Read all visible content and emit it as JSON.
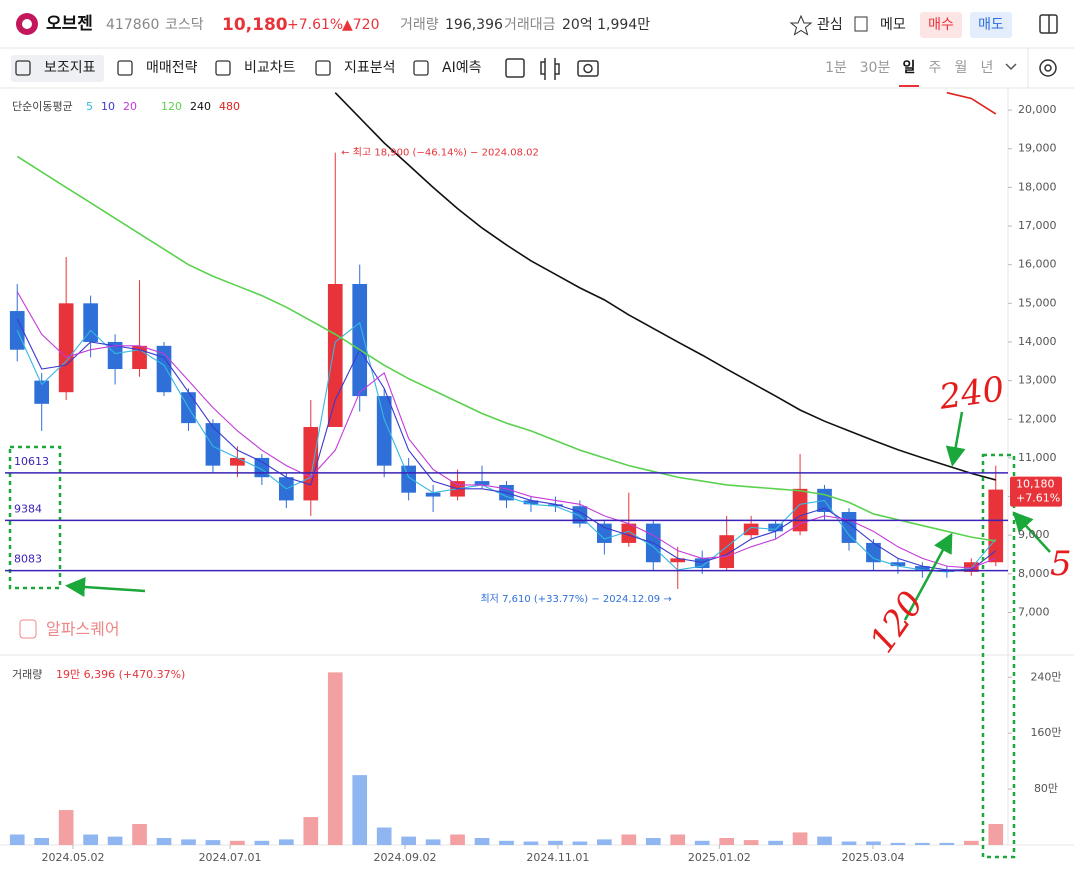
{
  "header": {
    "name": "오브젠",
    "code": "417860",
    "market": "코스닥",
    "price": "10,180",
    "change_pct": "+7.61%",
    "change": "▲720",
    "volume_label": "거래량",
    "volume": "196,396",
    "amount_label": "거래대금",
    "amount": "20억 1,994만",
    "actions": [
      "관심",
      "메모"
    ],
    "buy": "매수",
    "sell": "매도"
  },
  "toolbar": {
    "tools": [
      "보조지표",
      "매매전략",
      "비교차트",
      "지표분석",
      "AI예측"
    ],
    "periods": [
      "1분",
      "30분",
      "일",
      "주",
      "월",
      "년"
    ],
    "active_period": 2
  },
  "watermark": "알파스퀘어",
  "handwritten": [
    "240",
    "120",
    "5"
  ],
  "chart_data": [
    {
      "type": "candlestick",
      "legend_title": "단순이동평균",
      "xlim": [
        -0.5,
        40.5
      ],
      "ylim": [
        5900,
        20520
      ],
      "yticks": [
        {
          "value": 7000,
          "label": "7,000"
        },
        {
          "value": 8000,
          "label": "8,000"
        },
        {
          "value": 9000,
          "label": "9,000"
        },
        {
          "value": 10000,
          "label": "10,000"
        },
        {
          "value": 11000,
          "label": "11,000"
        },
        {
          "value": 12000,
          "label": "12,000"
        },
        {
          "value": 13000,
          "label": "13,000"
        },
        {
          "value": 14000,
          "label": "14,000"
        },
        {
          "value": 15000,
          "label": "15,000"
        },
        {
          "value": 16000,
          "label": "16,000"
        },
        {
          "value": 17000,
          "label": "17,000"
        },
        {
          "value": 18000,
          "label": "18,000"
        },
        {
          "value": 19000,
          "label": "19,000"
        },
        {
          "value": 20000,
          "label": "20,000"
        }
      ],
      "xticks": [
        {
          "value": 2.28,
          "label": "2024.05.02"
        },
        {
          "value": 8.7,
          "label": "2024.07.01"
        },
        {
          "value": 15.85,
          "label": "2024.09.02"
        },
        {
          "value": 22.1,
          "label": "2024.11.01"
        },
        {
          "value": 28.7,
          "label": "2025.01.02"
        },
        {
          "value": 34.98,
          "label": "2025.03.04"
        }
      ],
      "grid": false,
      "up_color": "#e8333a",
      "down_color": "#2f6fd8",
      "open": [
        14800,
        13000,
        12700,
        15000,
        14000,
        13300,
        13900,
        12700,
        11900,
        10800,
        11000,
        10500,
        9900,
        11800,
        15500,
        12600,
        10800,
        10100,
        10000,
        10400,
        10300,
        9900,
        9800,
        9750,
        9300,
        8800,
        9300,
        8300,
        8400,
        8150,
        9000,
        9300,
        9100,
        10200,
        9600,
        8800,
        8300,
        8200,
        8100,
        8050,
        8300
      ],
      "high": [
        15500,
        13200,
        16200,
        15200,
        14200,
        15600,
        14000,
        12800,
        12000,
        11300,
        11100,
        10600,
        12500,
        18900,
        16000,
        12800,
        11000,
        10300,
        10700,
        10800,
        10400,
        10000,
        10000,
        9900,
        9400,
        10100,
        9400,
        8700,
        8600,
        9500,
        9500,
        9400,
        11100,
        10300,
        9700,
        8900,
        8400,
        8300,
        8200,
        8400,
        10800
      ],
      "low": [
        13500,
        11700,
        12500,
        13600,
        12900,
        13100,
        12600,
        11700,
        10600,
        10500,
        10300,
        9700,
        9500,
        11800,
        12200,
        10500,
        9900,
        9600,
        9900,
        10200,
        9700,
        9600,
        9600,
        9200,
        8500,
        8700,
        8100,
        7610,
        8000,
        8100,
        8900,
        8900,
        9000,
        9400,
        8600,
        8100,
        8000,
        7900,
        7900,
        7950,
        8200
      ],
      "close": [
        13800,
        12400,
        15000,
        14000,
        13300,
        13900,
        12700,
        11900,
        10800,
        11000,
        10500,
        9900,
        11800,
        15500,
        12600,
        10800,
        10100,
        10000,
        10400,
        10300,
        9900,
        9800,
        9750,
        9300,
        8800,
        9300,
        8300,
        8400,
        8150,
        9000,
        9300,
        9100,
        10200,
        9600,
        8800,
        8300,
        8200,
        8100,
        8050,
        8300,
        10180
      ],
      "series": [
        {
          "name": "5",
          "color": "#35b8e0",
          "values": [
            14300,
            12900,
            13500,
            14300,
            13700,
            13800,
            13400,
            12300,
            11300,
            11000,
            10700,
            10200,
            10500,
            14000,
            14500,
            12000,
            10500,
            10100,
            10200,
            10300,
            10000,
            9800,
            9750,
            9500,
            8900,
            9100,
            8700,
            8100,
            8200,
            8700,
            9200,
            9150,
            9800,
            9900,
            9000,
            8400,
            8200,
            8100,
            8050,
            8150,
            8900
          ]
        },
        {
          "name": "10",
          "color": "#3a3ad0",
          "values": [
            14600,
            13300,
            13400,
            14000,
            13900,
            13800,
            13600,
            12700,
            11800,
            11200,
            10900,
            10500,
            10300,
            12500,
            13800,
            12800,
            11200,
            10400,
            10200,
            10200,
            10100,
            9900,
            9800,
            9600,
            9200,
            9000,
            8800,
            8400,
            8300,
            8500,
            8900,
            9100,
            9500,
            9700,
            9300,
            8800,
            8400,
            8200,
            8100,
            8100,
            8600
          ]
        },
        {
          "name": "20",
          "color": "#c43ad9",
          "values": [
            15300,
            14200,
            13600,
            13800,
            13900,
            13900,
            13700,
            13000,
            12300,
            11700,
            11200,
            10800,
            10500,
            11200,
            12700,
            13200,
            11500,
            10700,
            10300,
            10300,
            10200,
            10000,
            9900,
            9800,
            9500,
            9300,
            9000,
            8600,
            8400,
            8450,
            8700,
            8900,
            9300,
            9500,
            9400,
            9100,
            8700,
            8400,
            8200,
            8150,
            8400
          ]
        },
        {
          "name": "120",
          "color": "#5ad24e",
          "values": [
            18800,
            18400,
            18000,
            17600,
            17200,
            16800,
            16400,
            16000,
            15700,
            15450,
            15200,
            14900,
            14550,
            14200,
            13800,
            13400,
            13050,
            12750,
            12450,
            12150,
            11900,
            11700,
            11450,
            11200,
            11000,
            10800,
            10650,
            10500,
            10400,
            10300,
            10250,
            10200,
            10150,
            10050,
            9850,
            9550,
            9400,
            9250,
            9100,
            8950,
            8850
          ]
        },
        {
          "name": "240",
          "color": "#111111",
          "values": [
            null,
            null,
            null,
            null,
            null,
            null,
            null,
            null,
            null,
            null,
            null,
            null,
            null,
            20450,
            19800,
            19150,
            18580,
            18000,
            17450,
            16950,
            16510,
            16100,
            15750,
            15400,
            15090,
            14700,
            14350,
            14000,
            13660,
            13300,
            12950,
            12600,
            12240,
            11950,
            11700,
            11450,
            11210,
            11000,
            10800,
            10600,
            10430
          ]
        },
        {
          "name": "480",
          "color": "#e0201c",
          "values": [
            null,
            null,
            null,
            null,
            null,
            null,
            null,
            null,
            null,
            null,
            null,
            null,
            null,
            null,
            null,
            null,
            null,
            null,
            null,
            null,
            null,
            null,
            null,
            null,
            null,
            null,
            null,
            null,
            null,
            null,
            null,
            null,
            null,
            null,
            null,
            null,
            null,
            null,
            20450,
            20300,
            19900
          ]
        }
      ],
      "levels": [
        10613,
        9384,
        8083
      ],
      "level_color": "#3a22b8",
      "high_note": "← 최고 18,900 (−46.14%) − 2024.08.02",
      "low_note": "최저 7,610 (+33.77%) − 2024.12.09 →",
      "last_labels": [
        "10,180",
        "+7.61%"
      ]
    },
    {
      "type": "bar",
      "label": "거래량",
      "summary": "19만 6,396 (+470.37%)",
      "ylim": [
        0,
        2647000
      ],
      "yticks": [
        {
          "value": 800000,
          "label": "80만"
        },
        {
          "value": 1600000,
          "label": "160만"
        },
        {
          "value": 2400000,
          "label": "240만"
        }
      ],
      "up_color": "#f3a0a3",
      "down_color": "#8fb6f0",
      "values": [
        150000,
        100000,
        500000,
        150000,
        120000,
        300000,
        100000,
        80000,
        70000,
        60000,
        60000,
        80000,
        400000,
        2470000,
        1000000,
        250000,
        120000,
        80000,
        150000,
        100000,
        60000,
        50000,
        60000,
        50000,
        80000,
        150000,
        100000,
        150000,
        60000,
        100000,
        70000,
        60000,
        180000,
        120000,
        50000,
        50000,
        30000,
        30000,
        30000,
        60000,
        300000
      ]
    }
  ]
}
